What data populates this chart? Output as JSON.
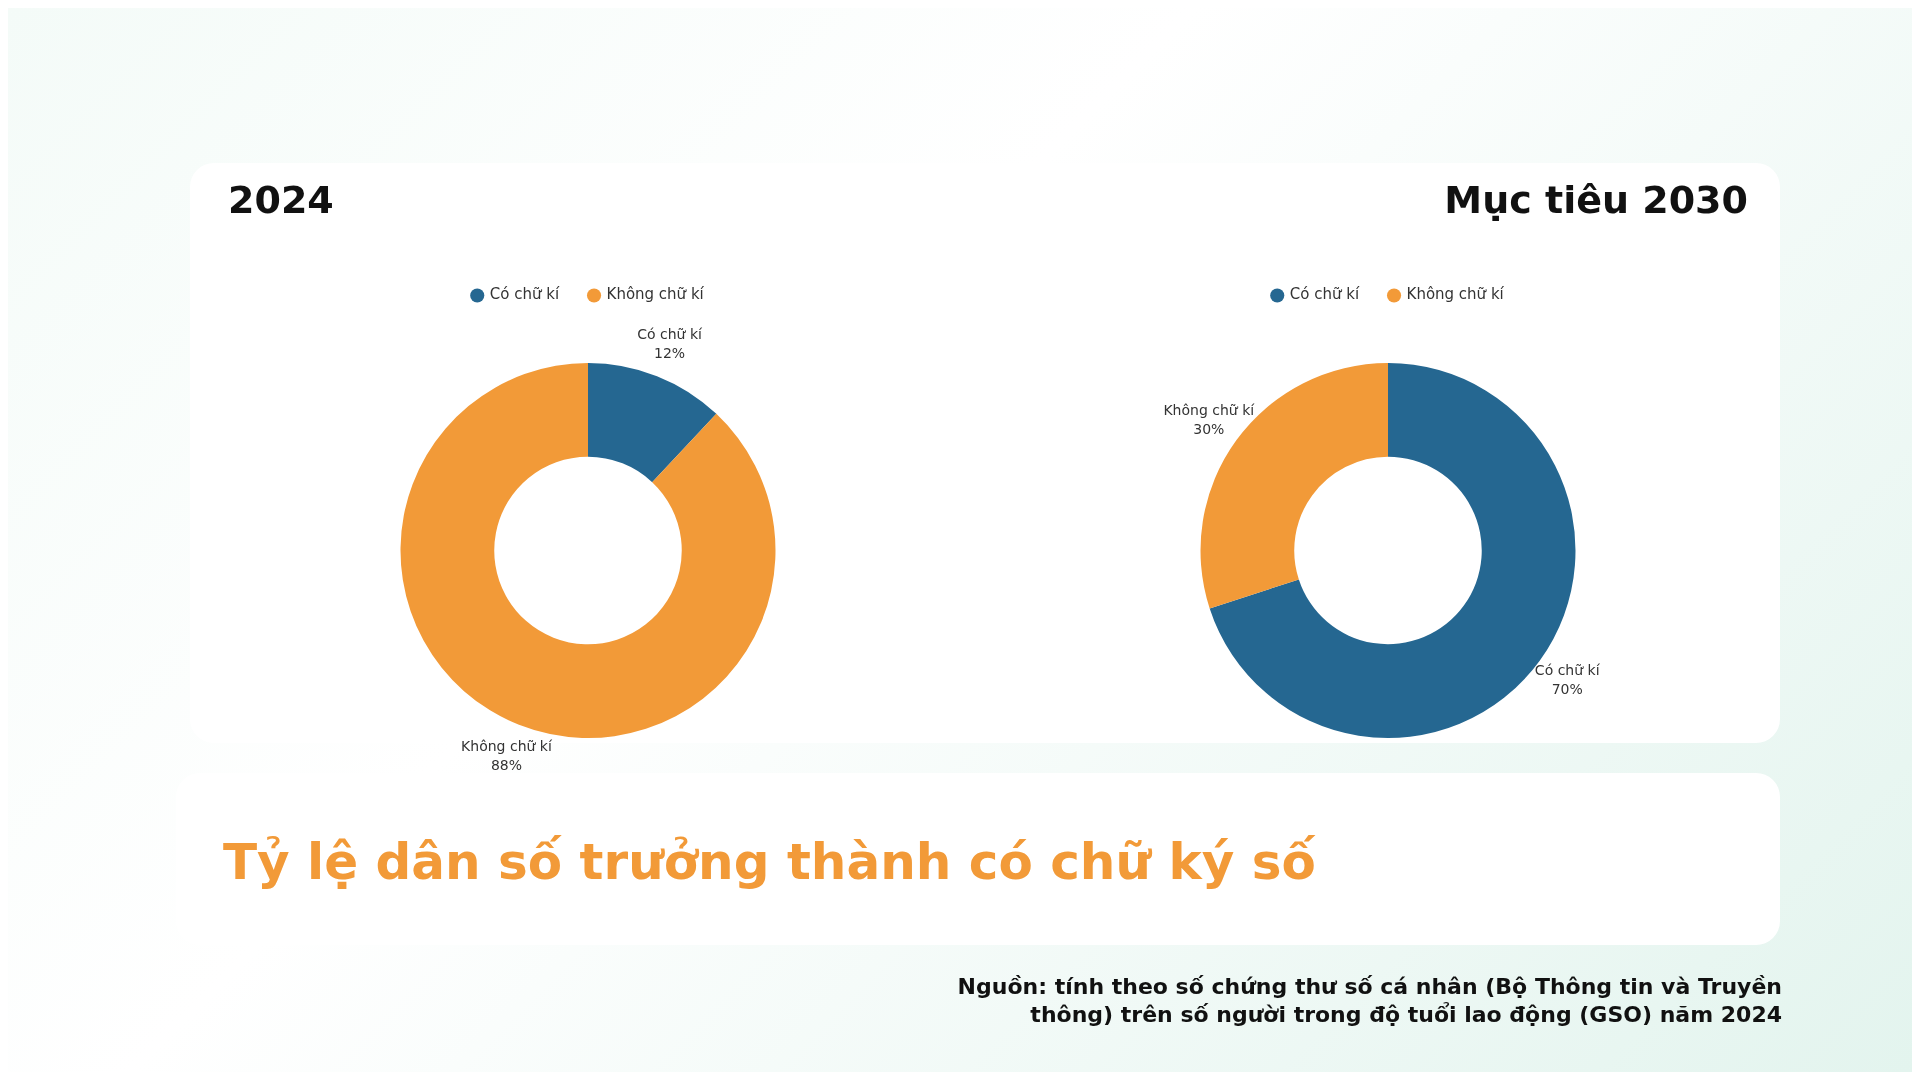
{
  "chart_data": [
    {
      "type": "donut",
      "title": "2024",
      "categories": [
        "Có chữ kí",
        "Không chữ kí"
      ],
      "values": [
        12,
        88
      ],
      "colors": [
        "#256791",
        "#f29a38"
      ],
      "value_labels": [
        "12%",
        "88%"
      ],
      "legend": "top"
    },
    {
      "type": "donut",
      "title": "Mục tiêu 2030",
      "categories": [
        "Có chữ kí",
        "Không chữ kí"
      ],
      "values": [
        70,
        30
      ],
      "colors": [
        "#256791",
        "#f29a38"
      ],
      "value_labels": [
        "70%",
        "30%"
      ],
      "legend": "top",
      "annotations": [
        "Tỷ lệ dân số trưởng thành có chữ ký số",
        "Nguồn: tính theo số chứng thư số cá nhân (Bộ Thông tin và Truyền thông) trên số người trong độ tuổi lao động (GSO) năm 2024"
      ]
    }
  ]
}
